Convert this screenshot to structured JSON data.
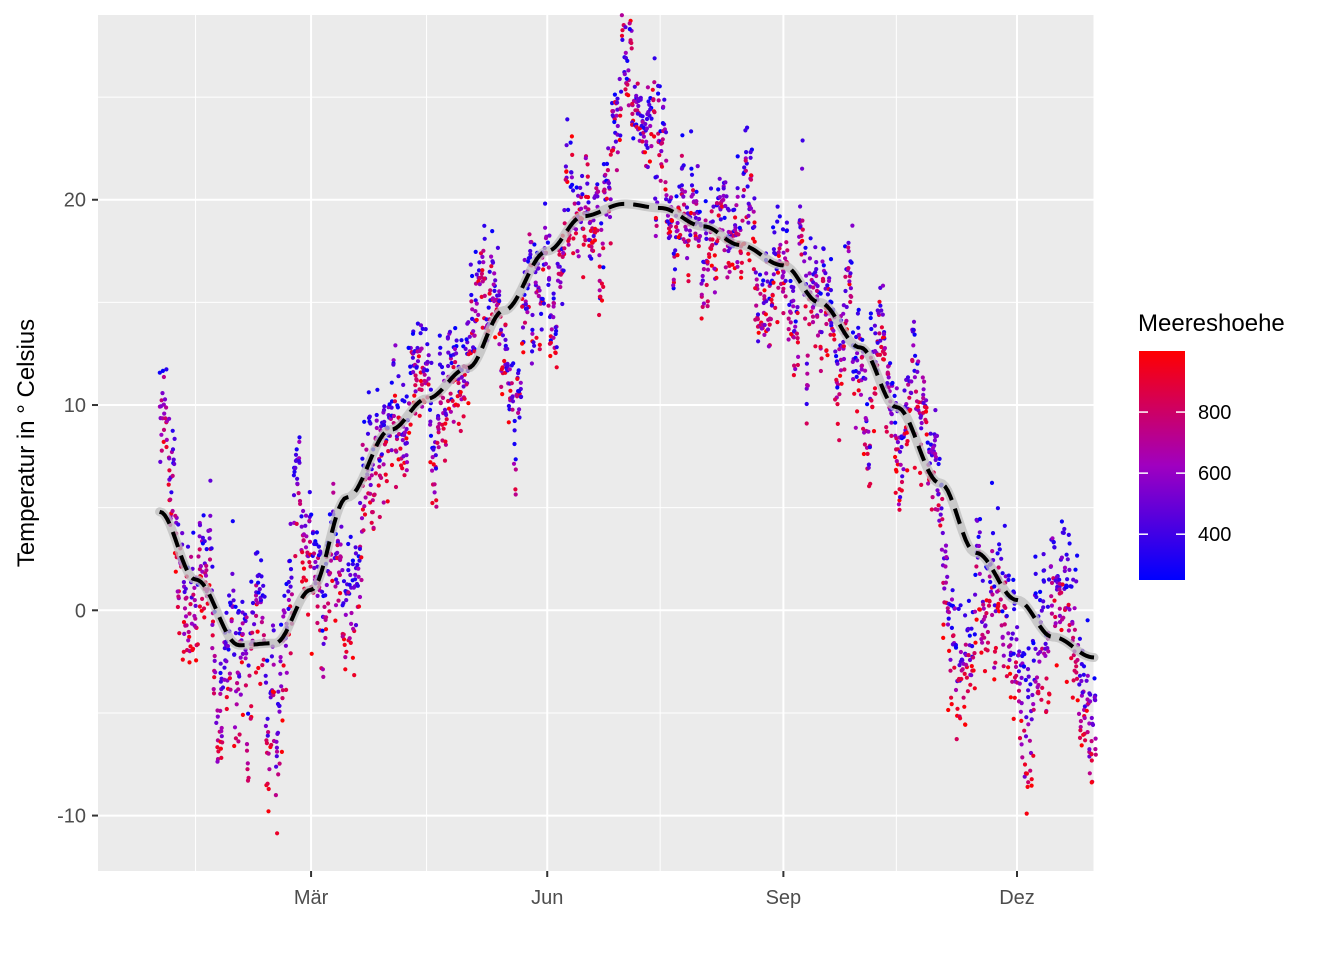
{
  "chart_data": {
    "type": "scatter",
    "title": "",
    "xlabel": "",
    "ylabel": "Temperatur in ° Celsius",
    "x_range": [
      "2018-12-08",
      "2019-12-31"
    ],
    "ylim": [
      -12.7,
      29.0
    ],
    "x_ticks": [
      {
        "date": "2019-03-01",
        "label": "Mär"
      },
      {
        "date": "2019-06-01",
        "label": "Jun"
      },
      {
        "date": "2019-09-01",
        "label": "Sep"
      },
      {
        "date": "2019-12-01",
        "label": "Dez"
      }
    ],
    "x_minor_ticks": [
      "2019-01-15",
      "2019-04-15",
      "2019-07-15",
      "2019-10-15",
      "2019-12-31"
    ],
    "y_ticks": [
      -10,
      0,
      10,
      20
    ],
    "grid": true,
    "panel_background": "#ebebeb",
    "grid_color": "#ffffff",
    "color_scale": {
      "name": "Meereshoehe",
      "low_color": "#0000ff",
      "high_color": "#ff0000",
      "range": [
        250,
        1000
      ],
      "breaks": [
        400,
        600,
        800
      ],
      "legend_position": "right"
    },
    "smooth_curve": [
      {
        "date": "2019-01-01",
        "value": 4.8
      },
      {
        "date": "2019-01-15",
        "value": 1.5
      },
      {
        "date": "2019-02-01",
        "value": -1.7
      },
      {
        "date": "2019-02-15",
        "value": -1.6
      },
      {
        "date": "2019-03-01",
        "value": 1.0
      },
      {
        "date": "2019-03-15",
        "value": 5.5
      },
      {
        "date": "2019-04-01",
        "value": 8.8
      },
      {
        "date": "2019-04-15",
        "value": 10.3
      },
      {
        "date": "2019-05-01",
        "value": 11.8
      },
      {
        "date": "2019-05-15",
        "value": 14.6
      },
      {
        "date": "2019-06-01",
        "value": 17.5
      },
      {
        "date": "2019-06-15",
        "value": 19.2
      },
      {
        "date": "2019-07-01",
        "value": 19.8
      },
      {
        "date": "2019-07-15",
        "value": 19.6
      },
      {
        "date": "2019-08-01",
        "value": 18.7
      },
      {
        "date": "2019-08-15",
        "value": 17.8
      },
      {
        "date": "2019-09-01",
        "value": 16.8
      },
      {
        "date": "2019-09-15",
        "value": 15.0
      },
      {
        "date": "2019-10-01",
        "value": 12.8
      },
      {
        "date": "2019-10-15",
        "value": 9.9
      },
      {
        "date": "2019-11-01",
        "value": 6.2
      },
      {
        "date": "2019-11-15",
        "value": 2.8
      },
      {
        "date": "2019-12-01",
        "value": 0.5
      },
      {
        "date": "2019-12-15",
        "value": -1.3
      },
      {
        "date": "2019-12-31",
        "value": -2.3
      }
    ],
    "point_noise": 3.2,
    "points_per_day": 8,
    "point_color_bias": [
      {
        "date": "2019-01-01",
        "value": 0.0
      },
      {
        "date": "2019-02-15",
        "value": -1.5
      },
      {
        "date": "2019-04-01",
        "value": 0.5
      },
      {
        "date": "2019-06-15",
        "value": 2.5
      },
      {
        "date": "2019-08-01",
        "value": 1.0
      },
      {
        "date": "2019-10-15",
        "value": 0.5
      },
      {
        "date": "2019-12-15",
        "value": -1.5
      }
    ]
  }
}
